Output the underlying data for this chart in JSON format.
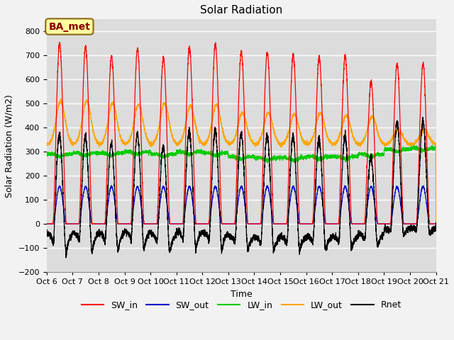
{
  "title": "Solar Radiation",
  "ylabel": "Solar Radiation (W/m2)",
  "xlabel": "Time",
  "annotation": "BA_met",
  "ylim": [
    -200,
    850
  ],
  "yticks": [
    -200,
    -100,
    0,
    100,
    200,
    300,
    400,
    500,
    600,
    700,
    800
  ],
  "xtick_labels": [
    "Oct 6",
    "Oct 7",
    "Oct 8",
    "Oct 9",
    "Oct 10",
    "Oct 11",
    "Oct 12",
    "Oct 13",
    "Oct 14",
    "Oct 15",
    "Oct 16",
    "Oct 17",
    "Oct 18",
    "Oct 19",
    "Oct 20",
    "Oct 21"
  ],
  "colors": {
    "SW_in": "#FF0000",
    "SW_out": "#0000CC",
    "LW_in": "#00CC00",
    "LW_out": "#FFA500",
    "Rnet": "#000000"
  },
  "n_days": 15,
  "points_per_day": 288,
  "background_color": "#DCDCDC",
  "grid_color": "#FFFFFF",
  "title_fontsize": 11,
  "label_fontsize": 9,
  "tick_fontsize": 8,
  "legend_fontsize": 9
}
